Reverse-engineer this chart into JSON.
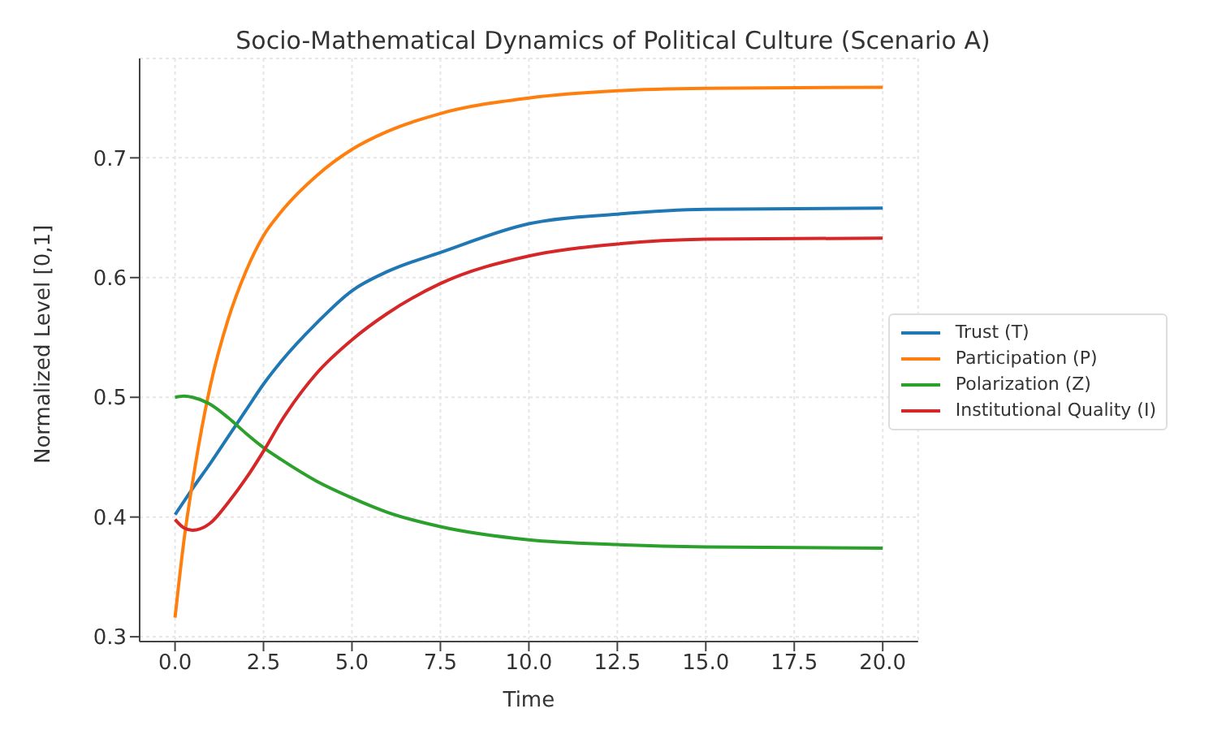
{
  "chart_data": {
    "type": "line",
    "title": "Socio-Mathematical Dynamics of Political Culture (Scenario A)",
    "xlabel": "Time",
    "ylabel": "Normalized Level [0,1]",
    "x": [
      0,
      0.25,
      0.5,
      1,
      1.5,
      2,
      2.5,
      3,
      4,
      5,
      6,
      7.5,
      10,
      12.5,
      15,
      20
    ],
    "series": [
      {
        "name": "Trust (T)",
        "color": "#1f77b4",
        "values": [
          0.402,
          0.413,
          0.424,
          0.445,
          0.467,
          0.489,
          0.511,
          0.53,
          0.562,
          0.589,
          0.605,
          0.621,
          0.645,
          0.653,
          0.657,
          0.658
        ]
      },
      {
        "name": "Participation (P)",
        "color": "#ff7f0e",
        "values": [
          0.316,
          0.38,
          0.43,
          0.51,
          0.565,
          0.605,
          0.635,
          0.655,
          0.685,
          0.707,
          0.722,
          0.737,
          0.75,
          0.756,
          0.758,
          0.759
        ]
      },
      {
        "name": "Polarization (Z)",
        "color": "#2ca02c",
        "values": [
          0.5,
          0.501,
          0.5,
          0.494,
          0.483,
          0.47,
          0.458,
          0.448,
          0.43,
          0.416,
          0.404,
          0.392,
          0.381,
          0.377,
          0.375,
          0.374
        ]
      },
      {
        "name": "Institutional Quality (I)",
        "color": "#d62728",
        "values": [
          0.398,
          0.391,
          0.389,
          0.395,
          0.412,
          0.432,
          0.455,
          0.48,
          0.52,
          0.548,
          0.57,
          0.595,
          0.618,
          0.628,
          0.632,
          0.633
        ]
      }
    ],
    "xlim": [
      -1,
      21
    ],
    "xticks": [
      {
        "value": 0,
        "label": "0.0"
      },
      2.5,
      {
        "value": 5,
        "label": "5.0"
      },
      7.5,
      {
        "value": 10,
        "label": "10.0"
      },
      12.5,
      {
        "value": 15,
        "label": "15.0"
      },
      17.5,
      {
        "value": 20,
        "label": "20.0"
      }
    ],
    "ylim": [
      0.296,
      0.783
    ],
    "yticks": [
      0.3,
      0.4,
      0.5,
      0.6,
      0.7
    ],
    "grid": true,
    "legend": "right",
    "line_style": "solid",
    "marker": "none"
  }
}
